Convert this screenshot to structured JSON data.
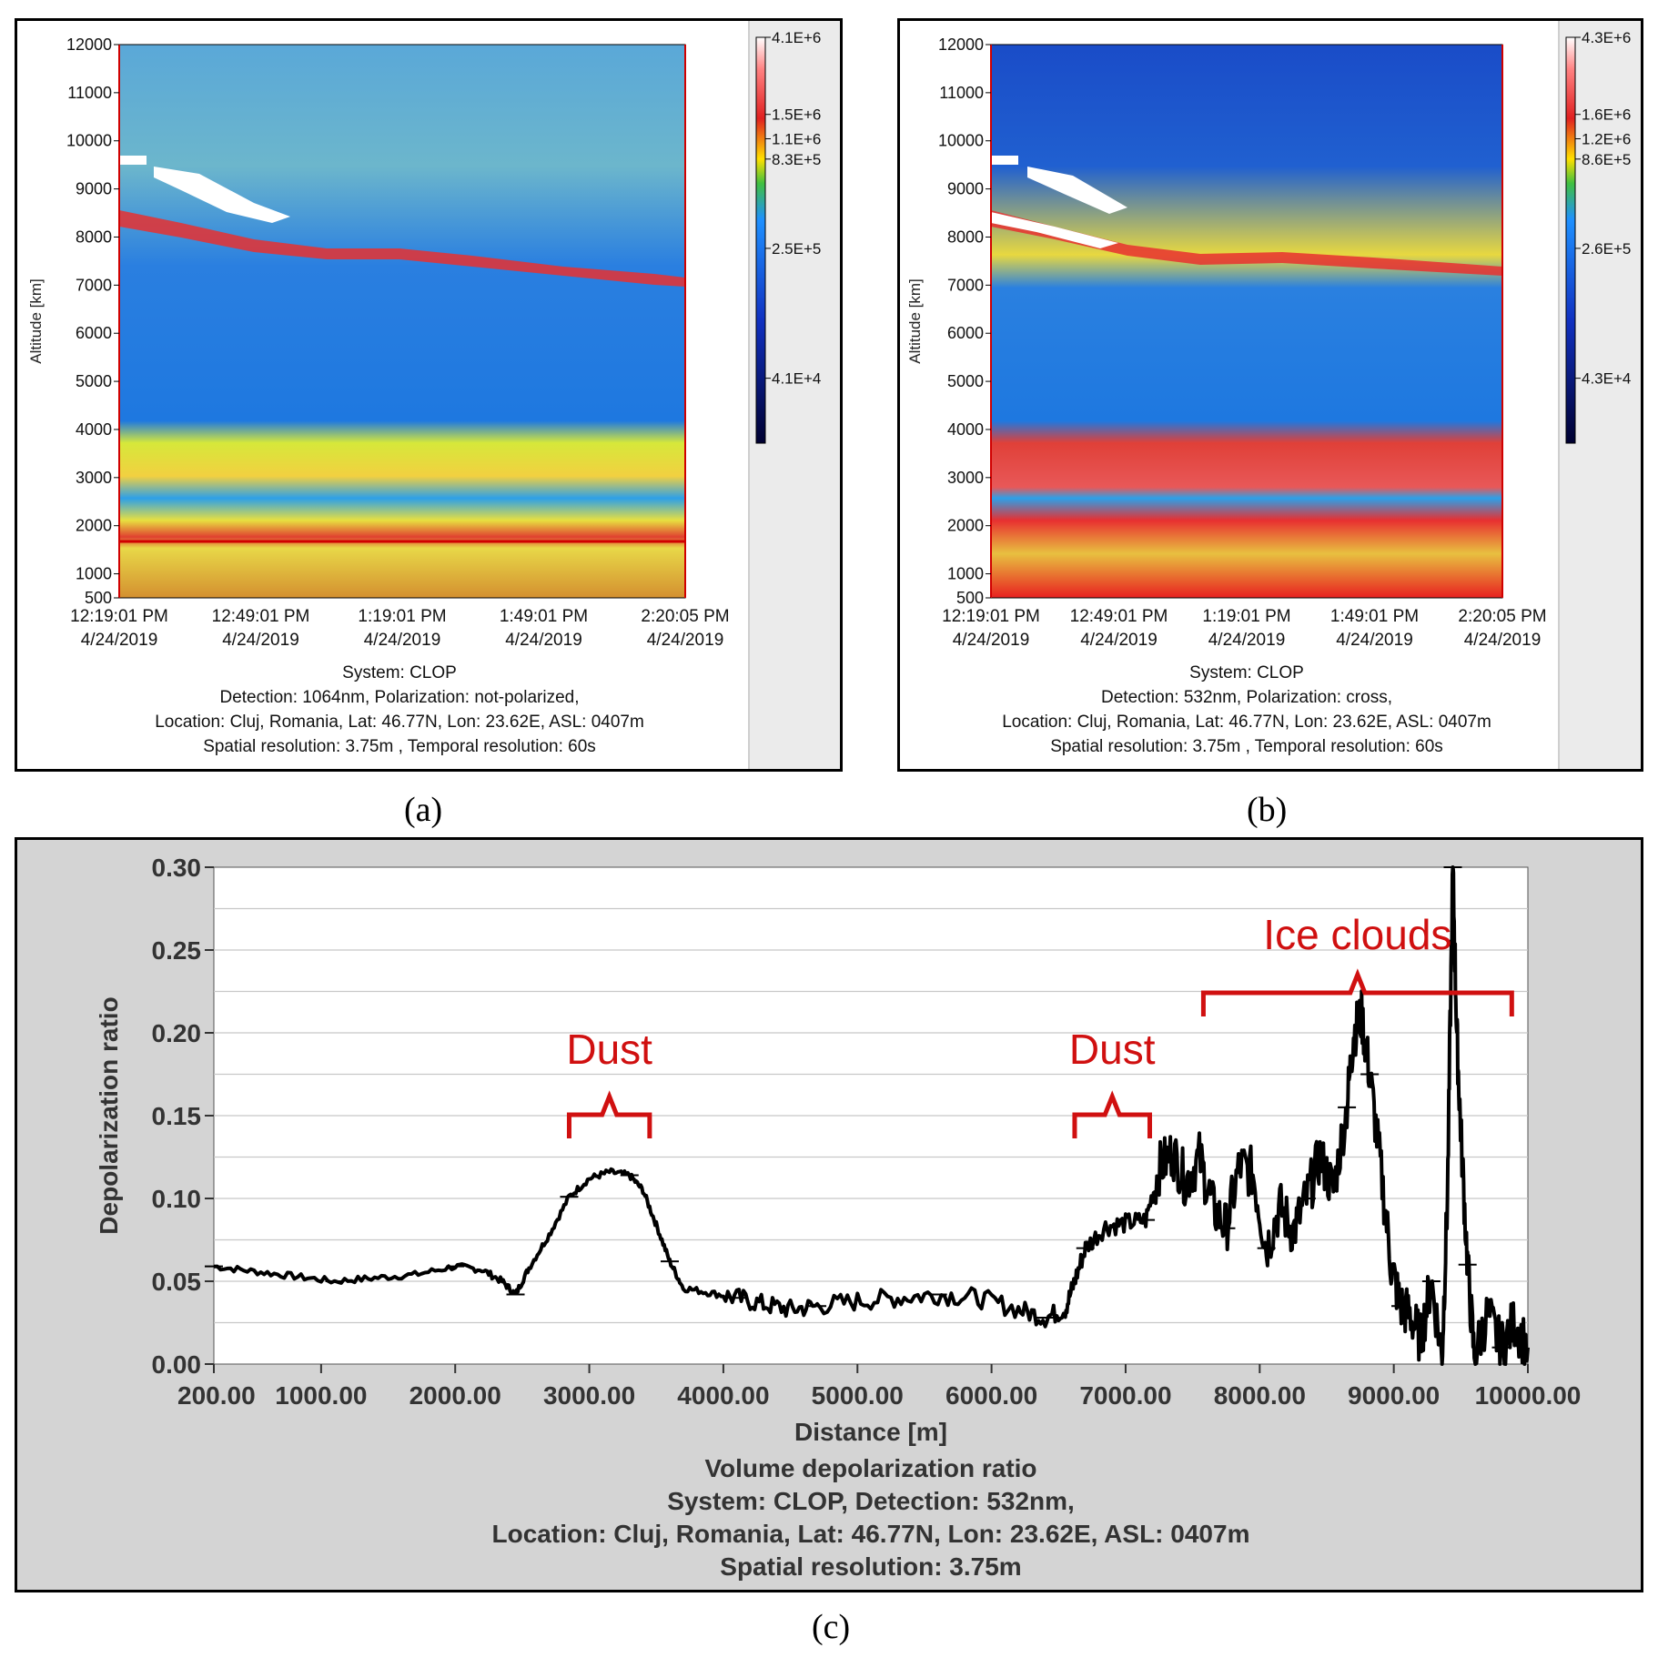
{
  "panel_a": {
    "y_axis_label": "Altitude [km]",
    "y_ticks": [
      "12000",
      "11000",
      "10000",
      "9000",
      "8000",
      "7000",
      "6000",
      "5000",
      "4000",
      "3000",
      "2000",
      "1000",
      "500"
    ],
    "x_ticks": [
      {
        "time": "12:19:01 PM",
        "date": "4/24/2019"
      },
      {
        "time": "12:49:01 PM",
        "date": "4/24/2019"
      },
      {
        "time": "1:19:01 PM",
        "date": "4/24/2019"
      },
      {
        "time": "1:49:01 PM",
        "date": "4/24/2019"
      },
      {
        "time": "2:20:05 PM",
        "date": "4/24/2019"
      }
    ],
    "colorbar_labels": [
      "4.1E+6",
      "1.5E+6",
      "1.1E+6",
      "8.3E+5",
      "2.5E+5",
      "4.1E+4"
    ],
    "caption": [
      "System: CLOP",
      "Detection: 1064nm, Polarization: not-polarized,",
      "Location: Cluj, Romania, Lat: 46.77N, Lon: 23.62E, ASL: 0407m",
      "Spatial resolution: 3.75m , Temporal resolution: 60s"
    ],
    "label": "(a)"
  },
  "panel_b": {
    "y_axis_label": "Altitude [km]",
    "y_ticks": [
      "12000",
      "11000",
      "10000",
      "9000",
      "8000",
      "7000",
      "6000",
      "5000",
      "4000",
      "3000",
      "2000",
      "1000",
      "500"
    ],
    "x_ticks": [
      {
        "time": "12:19:01 PM",
        "date": "4/24/2019"
      },
      {
        "time": "12:49:01 PM",
        "date": "4/24/2019"
      },
      {
        "time": "1:19:01 PM",
        "date": "4/24/2019"
      },
      {
        "time": "1:49:01 PM",
        "date": "4/24/2019"
      },
      {
        "time": "2:20:05 PM",
        "date": "4/24/2019"
      }
    ],
    "colorbar_labels": [
      "4.3E+6",
      "1.6E+6",
      "1.2E+6",
      "8.6E+5",
      "2.6E+5",
      "4.3E+4"
    ],
    "caption": [
      "System: CLOP",
      "Detection: 532nm, Polarization: cross,",
      "Location: Cluj, Romania, Lat: 46.77N, Lon: 23.62E, ASL: 0407m",
      "Spatial resolution: 3.75m , Temporal resolution: 60s"
    ],
    "label": "(b)"
  },
  "panel_c": {
    "label": "(c)",
    "annotations": [
      {
        "text": "Dust",
        "range": [
          2850,
          3450
        ]
      },
      {
        "text": "Dust",
        "range": [
          6620,
          7180
        ]
      },
      {
        "text": "Ice clouds",
        "range": [
          7580,
          9880
        ]
      }
    ],
    "caption": [
      "Volume depolarization ratio",
      "System: CLOP, Detection: 532nm,",
      "Location: Cluj, Romania, Lat: 46.77N, Lon: 23.62E, ASL: 0407m",
      "Spatial resolution: 3.75m"
    ]
  },
  "chart_data": {
    "type": "line",
    "title": "Volume depolarization ratio",
    "xlabel": "Distance [m]",
    "ylabel": "Depolarization ratio",
    "xlim": [
      200,
      10000
    ],
    "ylim": [
      0,
      0.3
    ],
    "x_tick_values": [
      200,
      1000,
      2000,
      3000,
      4000,
      5000,
      6000,
      7000,
      8000,
      9000,
      10000
    ],
    "x_tick_labels": [
      "200.00",
      "1000.00",
      "2000.00",
      "3000.00",
      "4000.00",
      "5000.00",
      "6000.00",
      "7000.00",
      "8000.00",
      "9000.00",
      "10000.00"
    ],
    "y_tick_values": [
      0,
      0.05,
      0.1,
      0.15,
      0.2,
      0.25,
      0.3
    ],
    "y_tick_labels": [
      "0.00",
      "0.05",
      "0.10",
      "0.15",
      "0.20",
      "0.25",
      "0.30"
    ],
    "grid": true,
    "series": [
      {
        "name": "Volume depolarization ratio",
        "x": [
          200,
          500,
          800,
          1100,
          1400,
          1700,
          2000,
          2200,
          2350,
          2450,
          2550,
          2700,
          2850,
          3000,
          3150,
          3300,
          3400,
          3500,
          3600,
          3700,
          3900,
          4100,
          4300,
          4500,
          4700,
          5000,
          5300,
          5600,
          5900,
          6200,
          6400,
          6550,
          6620,
          6700,
          6850,
          7000,
          7150,
          7250,
          7350,
          7450,
          7550,
          7650,
          7750,
          7850,
          7950,
          8050,
          8150,
          8250,
          8350,
          8450,
          8550,
          8650,
          8700,
          8760,
          8820,
          8900,
          8980,
          9050,
          9120,
          9200,
          9280,
          9360,
          9400,
          9440,
          9470,
          9500,
          9550,
          9600,
          9700,
          9800,
          9900,
          10000
        ],
        "y": [
          0.059,
          0.056,
          0.053,
          0.05,
          0.052,
          0.054,
          0.059,
          0.057,
          0.05,
          0.042,
          0.058,
          0.078,
          0.101,
          0.112,
          0.116,
          0.114,
          0.105,
          0.084,
          0.062,
          0.046,
          0.043,
          0.04,
          0.036,
          0.033,
          0.035,
          0.038,
          0.04,
          0.042,
          0.04,
          0.033,
          0.028,
          0.033,
          0.05,
          0.07,
          0.083,
          0.085,
          0.087,
          0.118,
          0.128,
          0.11,
          0.125,
          0.095,
          0.082,
          0.12,
          0.115,
          0.07,
          0.095,
          0.08,
          0.1,
          0.125,
          0.105,
          0.155,
          0.2,
          0.21,
          0.175,
          0.12,
          0.06,
          0.035,
          0.03,
          0.015,
          0.05,
          0.005,
          0.1,
          0.3,
          0.2,
          0.14,
          0.06,
          0.005,
          0.03,
          0.01,
          0.025,
          0.01
        ]
      }
    ]
  }
}
